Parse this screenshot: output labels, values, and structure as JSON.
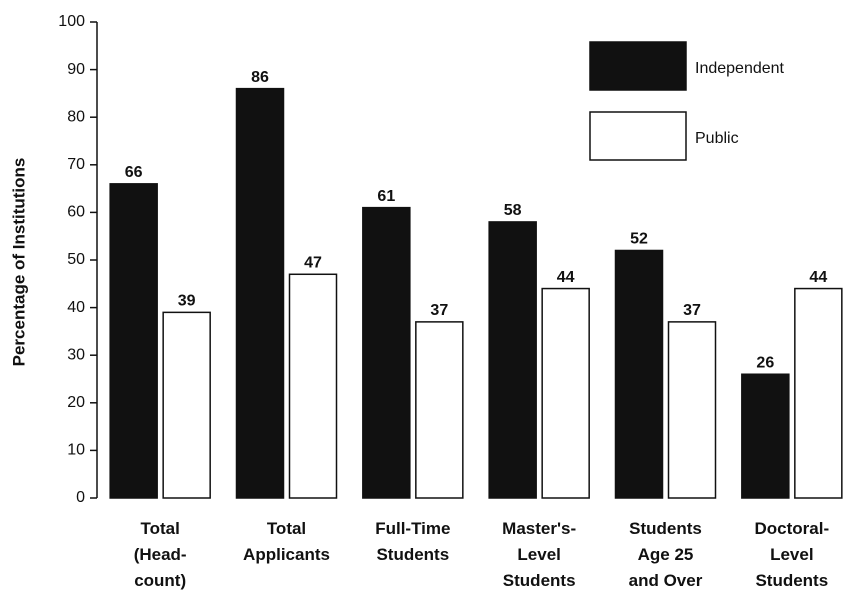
{
  "chart_data": {
    "type": "bar",
    "y_label": "Percentage of Institutions",
    "categories": [
      [
        "Total",
        "(Head-",
        "count)"
      ],
      [
        "Total",
        "Applicants"
      ],
      [
        "Full-Time",
        "Students"
      ],
      [
        "Master's-",
        "Level",
        "Students"
      ],
      [
        "Students",
        "Age 25",
        "and Over"
      ],
      [
        "Doctoral-",
        "Level",
        "Students"
      ]
    ],
    "series": [
      {
        "name": "Independent",
        "color": "#111111",
        "values": [
          66,
          86,
          61,
          58,
          52,
          26
        ]
      },
      {
        "name": "Public",
        "color": "#ffffff",
        "values": [
          39,
          47,
          37,
          44,
          37,
          44
        ]
      }
    ],
    "ylim": [
      0,
      100
    ],
    "yticks": [
      0,
      10,
      20,
      30,
      40,
      50,
      60,
      70,
      80,
      90,
      100
    ],
    "legend": "upper right"
  }
}
